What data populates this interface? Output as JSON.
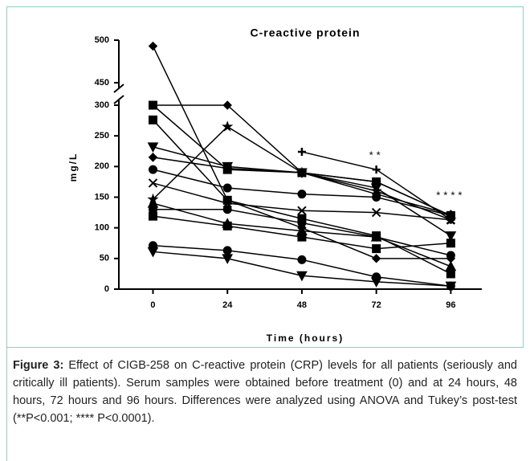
{
  "chart_data": {
    "type": "line",
    "title": "C-reactive protein",
    "x_label": "Time (hours)",
    "y_label": "mg/L",
    "x": [
      0,
      24,
      48,
      72,
      96
    ],
    "xlim": [
      -11,
      106
    ],
    "xticks": [
      0,
      24,
      48,
      72,
      96
    ],
    "ylim": [
      0,
      500
    ],
    "ybreak": [
      300,
      450
    ],
    "yticks": [
      0,
      50,
      100,
      150,
      200,
      250,
      300,
      450,
      500
    ],
    "series": [
      {
        "color": "#000000",
        "marker": "diamond",
        "values": [
          493,
          145,
          100,
          50,
          50
        ]
      },
      {
        "color": "#000000",
        "marker": "diamond",
        "values": [
          300,
          300,
          190,
          175,
          120
        ]
      },
      {
        "color": "#000000",
        "marker": "star",
        "values": [
          313,
          265,
          190,
          160,
          113
        ]
      },
      {
        "color": "#000000",
        "marker": "square",
        "values": [
          300,
          195,
          190,
          175,
          120
        ]
      },
      {
        "color": "#000000",
        "marker": "square",
        "values": [
          276,
          145,
          115,
          87,
          25
        ]
      },
      {
        "color": "#000000",
        "marker": "down-triangle",
        "values": [
          232,
          200,
          190,
          165,
          87
        ]
      },
      {
        "color": "#000000",
        "marker": "plus",
        "values": [
          215,
          null,
          224,
          195,
          113
        ]
      },
      {
        "color": "#000000",
        "marker": "diamond",
        "values": [
          215,
          197,
          190,
          155,
          122
        ]
      },
      {
        "color": "#000000",
        "marker": "circle",
        "values": [
          195,
          165,
          155,
          150,
          120
        ]
      },
      {
        "color": "#000000",
        "marker": "x",
        "values": [
          173,
          140,
          128,
          125,
          113
        ]
      },
      {
        "color": "#000000",
        "marker": "triangle",
        "values": [
          140,
          107,
          95,
          85,
          37
        ]
      },
      {
        "color": "#000000",
        "marker": "circle",
        "values": [
          130,
          130,
          108,
          85,
          55
        ]
      },
      {
        "color": "#000000",
        "marker": "square",
        "values": [
          119,
          103,
          85,
          66,
          75
        ]
      },
      {
        "color": "#000000",
        "marker": "circle",
        "values": [
          71,
          63,
          48,
          20,
          5
        ]
      },
      {
        "color": "#000000",
        "marker": "down-triangle",
        "values": [
          61,
          50,
          22,
          12,
          5
        ]
      }
    ],
    "annotations": [
      {
        "x": 72,
        "text": "**"
      },
      {
        "x": 96,
        "text": "****"
      }
    ],
    "caption_label": "Figure 3:",
    "caption": "Effect of CIGB-258 on C-reactive protein (CRP) levels for all patients (seriously and critically ill patients). Serum samples were obtained before treatment (0) and at 24 hours, 48 hours, 72 hours and 96 hours. Differences were analyzed using ANOVA and Tukey’s post-test (**P<0.001; **** P<0.0001)."
  }
}
